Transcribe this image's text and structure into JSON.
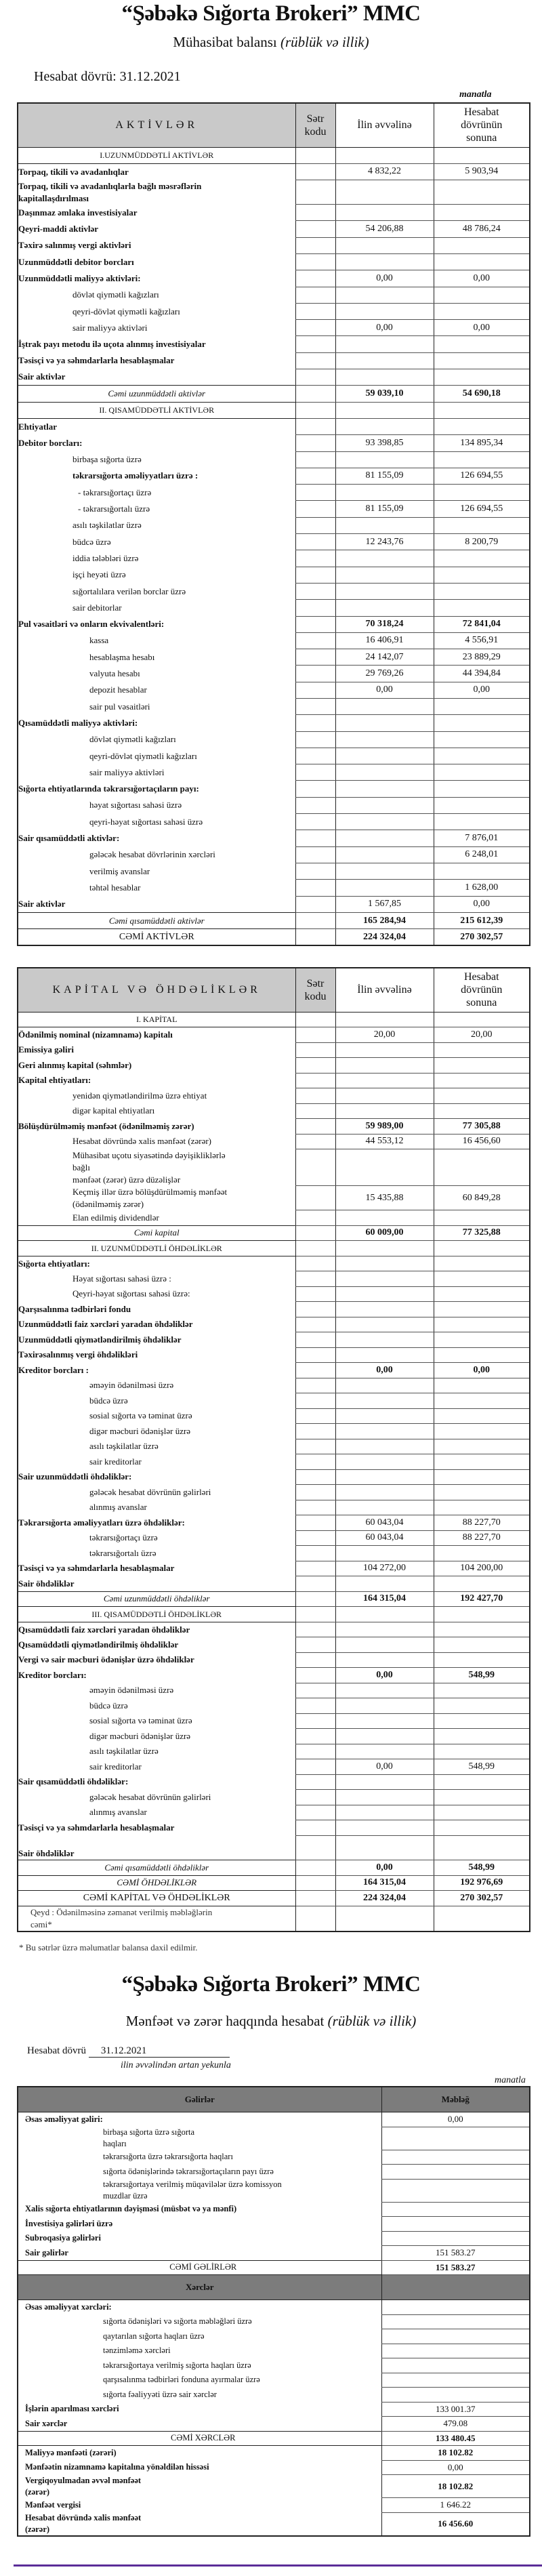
{
  "company": "“Şəbəkə Sığorta Brokeri” MMC",
  "balance": {
    "subtitle": "Mühasibat balansı",
    "subtitle_italic": "(rüblük və illik)",
    "period_label": "Hesabat dövrü: 31.12.2021",
    "currency": "manatla",
    "columns": {
      "code": "Sətr\nkodu",
      "start": "İlin əvvəlinə",
      "end": "Hesabat\ndövrünün\nsonuna"
    }
  },
  "assets": {
    "header": "AKTİVLƏR",
    "rows": [
      {
        "label": "I.UZUNMÜDDƏTLİ AKTİVLƏR",
        "type": "sec",
        "v": [
          "",
          ""
        ]
      },
      {
        "label": "Torpaq, tikili və avadanlıqlar",
        "type": "b",
        "v": [
          "4 832,22",
          "5 903,94"
        ]
      },
      {
        "label": "Torpaq, tikili və avadanlıqlarla bağlı məsrəflərin\nkapitallaşdırılması",
        "type": "b",
        "v": [
          "",
          ""
        ]
      },
      {
        "label": "Daşınmaz əmlaka investisiyalar",
        "type": "b",
        "v": [
          "",
          ""
        ]
      },
      {
        "label": "Qeyri-maddi aktivlər",
        "type": "b",
        "v": [
          "54 206,88",
          "48 786,24"
        ]
      },
      {
        "label": "Təxirə salınmış vergi aktivləri",
        "type": "b",
        "v": [
          "",
          ""
        ]
      },
      {
        "label": "Uzunmüddətli debitor borcları",
        "type": "b",
        "v": [
          "",
          ""
        ]
      },
      {
        "label": "Uzunmüddətli maliyyə aktivləri:",
        "type": "b",
        "v": [
          "0,00",
          "0,00"
        ]
      },
      {
        "label": "dövlət qiymətli kağızları",
        "type": "i1",
        "v": [
          "",
          ""
        ]
      },
      {
        "label": "qeyri-dövlət qiymətli kağızları",
        "type": "i1",
        "v": [
          "",
          ""
        ]
      },
      {
        "label": "sair maliyyə aktivləri",
        "type": "i1",
        "v": [
          "0,00",
          "0,00"
        ]
      },
      {
        "label": "İştrak payı metodu ilə uçota alınmış investisiyalar",
        "type": "b",
        "v": [
          "",
          ""
        ]
      },
      {
        "label": "Təsisçi və ya səhmdarlarla hesablaşmalar",
        "type": "b",
        "v": [
          "",
          ""
        ]
      },
      {
        "label": "Sair aktivlər",
        "type": "b",
        "v": [
          "",
          ""
        ]
      },
      {
        "label": "Cəmi uzunmüddətli aktivlər",
        "type": "tot",
        "v": [
          "59 039,10",
          "54 690,18"
        ]
      },
      {
        "label": "II. QISAMÜDDƏTLİ AKTİVLƏR",
        "type": "sec",
        "v": [
          "",
          ""
        ]
      },
      {
        "label": "Ehtiyatlar",
        "type": "b",
        "v": [
          "",
          ""
        ]
      },
      {
        "label": "Debitor borcları:",
        "type": "b",
        "v": [
          "93 398,85",
          "134 895,34"
        ]
      },
      {
        "label": "birbaşa sığorta üzrə",
        "type": "i1",
        "v": [
          "",
          ""
        ]
      },
      {
        "label": "təkrarsığorta əməliyyatları üzrə :",
        "type": "i1b",
        "v": [
          "81 155,09",
          "126 694,55"
        ]
      },
      {
        "label": "- təkrarsığortaçı üzrə",
        "type": "i1d",
        "v": [
          "",
          ""
        ]
      },
      {
        "label": "- təkrarsığortalı üzrə",
        "type": "i1d",
        "v": [
          "81 155,09",
          "126 694,55"
        ]
      },
      {
        "label": "asılı təşkilatlar üzrə",
        "type": "i1",
        "v": [
          "",
          ""
        ]
      },
      {
        "label": "büdcə üzrə",
        "type": "i1",
        "v": [
          "12 243,76",
          "8 200,79"
        ]
      },
      {
        "label": "iddia tələbləri üzrə",
        "type": "i1",
        "v": [
          "",
          ""
        ]
      },
      {
        "label": "işçi heyəti üzrə",
        "type": "i1",
        "v": [
          "",
          ""
        ]
      },
      {
        "label": "sığortalılara verilən borclar üzrə",
        "type": "i1",
        "v": [
          "",
          ""
        ]
      },
      {
        "label": "sair debitorlar",
        "type": "i1",
        "v": [
          "",
          ""
        ]
      },
      {
        "label": "Pul vəsaitləri  və onların ekvivalentləri:",
        "type": "b bv",
        "v": [
          "70 318,24",
          "72 841,04"
        ]
      },
      {
        "label": "kassa",
        "type": "i2",
        "v": [
          "16 406,91",
          "4 556,91"
        ]
      },
      {
        "label": "hesablaşma hesabı",
        "type": "i2",
        "v": [
          "24 142,07",
          "23 889,29"
        ]
      },
      {
        "label": "valyuta hesabı",
        "type": "i2",
        "v": [
          "29 769,26",
          "44 394,84"
        ]
      },
      {
        "label": "depozit hesablar",
        "type": "i2",
        "v": [
          "0,00",
          "0,00"
        ]
      },
      {
        "label": "sair pul vəsaitləri",
        "type": "i2",
        "v": [
          "",
          ""
        ]
      },
      {
        "label": "Qısamüddətli maliyyə aktivləri:",
        "type": "b",
        "v": [
          "",
          ""
        ]
      },
      {
        "label": "dövlət qiymətli kağızları",
        "type": "i2",
        "v": [
          "",
          ""
        ]
      },
      {
        "label": "qeyri-dövlət qiymətli kağızları",
        "type": "i2",
        "v": [
          "",
          ""
        ]
      },
      {
        "label": "sair maliyyə aktivləri",
        "type": "i2",
        "v": [
          "",
          ""
        ]
      },
      {
        "label": "Sığorta ehtiyatlarında təkrarsığortaçıların payı:",
        "type": "b",
        "v": [
          "",
          ""
        ]
      },
      {
        "label": "həyat sığortası sahəsi üzrə",
        "type": "i2",
        "v": [
          "",
          ""
        ]
      },
      {
        "label": "qeyri-həyat sığortası sahəsi üzrə",
        "type": "i2",
        "v": [
          "",
          ""
        ]
      },
      {
        "label": "Sair qısamüddətli aktivlər:",
        "type": "b",
        "v": [
          "",
          "7 876,01"
        ]
      },
      {
        "label": "gələcək hesabat dövrlərinin xərcləri",
        "type": "i2",
        "v": [
          "",
          "6 248,01"
        ]
      },
      {
        "label": "verilmiş  avanslar",
        "type": "i2",
        "v": [
          "",
          ""
        ]
      },
      {
        "label": "təhtəl hesablar",
        "type": "i2",
        "v": [
          "",
          "1 628,00"
        ]
      },
      {
        "label": "Sair aktivlər",
        "type": "b",
        "v": [
          "1 567,85",
          "0,00"
        ]
      },
      {
        "label": "Cəmi qısamüddətli aktivlər",
        "type": "tot",
        "v": [
          "165 284,94",
          "215 612,39"
        ]
      },
      {
        "label": "CƏMİ AKTİVLƏR",
        "type": "grand",
        "v": [
          "224 324,04",
          "270 302,57"
        ]
      }
    ]
  },
  "liabilities": {
    "header": "KAPİTAL VƏ  ÖHDƏLİKLƏR",
    "rows": [
      {
        "label": "I. KAPİTAL",
        "type": "sec",
        "v": [
          "",
          ""
        ]
      },
      {
        "label": "Ödənilmiş nominal (nizamnamə) kapitalı",
        "type": "b",
        "v": [
          "20,00",
          "20,00"
        ]
      },
      {
        "label": "Emissiya gəliri",
        "type": "b",
        "v": [
          "",
          ""
        ]
      },
      {
        "label": "Geri alınmış kapital (səhmlər)",
        "type": "b",
        "v": [
          "",
          ""
        ]
      },
      {
        "label": "Kapital ehtiyatları:",
        "type": "b",
        "v": [
          "",
          ""
        ]
      },
      {
        "label": "yenidən qiymətləndirilmə üzrə ehtiyat",
        "type": "i1",
        "v": [
          "",
          ""
        ]
      },
      {
        "label": "digər kapital ehtiyatları",
        "type": "i1",
        "v": [
          "",
          ""
        ]
      },
      {
        "label": "Bölüşdürülməmiş mənfəət (ödənilməmiş zərər)",
        "type": "b bv",
        "v": [
          "59 989,00",
          "77 305,88"
        ]
      },
      {
        "label": "Hesabat dövründə xalis mənfəət (zərər)",
        "type": "i1",
        "v": [
          "44 553,12",
          "16 456,60"
        ]
      },
      {
        "label": "Mühasibat uçotu siyasətində dəyişikliklərlə\nbağlı\nmənfəət (zərər) üzrə düzəlişlər",
        "type": "i1",
        "v": [
          "",
          ""
        ]
      },
      {
        "label": "Keçmiş illər üzrə bölüşdürülməmiş mənfəət\n(ödənilməmiş zərər)",
        "type": "i1",
        "v": [
          "15 435,88",
          "60 849,28"
        ]
      },
      {
        "label": "Elan edilmiş dividendlər",
        "type": "i1",
        "v": [
          "",
          ""
        ]
      },
      {
        "label": "Cəmi kapital",
        "type": "tot",
        "v": [
          "60 009,00",
          "77 325,88"
        ]
      },
      {
        "label": "II. UZUNMÜDDƏTLİ ÖHDƏLİKLƏR",
        "type": "sec",
        "v": [
          "",
          ""
        ]
      },
      {
        "label": "Sığorta ehtiyatları:",
        "type": "b",
        "v": [
          "",
          ""
        ]
      },
      {
        "label": "Həyat sığortası sahəsi üzrə :",
        "type": "i1",
        "v": [
          "",
          ""
        ]
      },
      {
        "label": "Qeyri-həyat sığortası sahəsi üzrə:",
        "type": "i1",
        "v": [
          "",
          ""
        ]
      },
      {
        "label": "Qarşısalınma tədbirləri fondu",
        "type": "b",
        "v": [
          "",
          ""
        ]
      },
      {
        "label": "Uzunmüddətli faiz xərcləri yaradan öhdəliklər",
        "type": "b",
        "v": [
          "",
          ""
        ]
      },
      {
        "label": "Uzunmüddətli qiymətləndirilmiş öhdəliklər",
        "type": "b",
        "v": [
          "",
          ""
        ]
      },
      {
        "label": "Təxirəsalınmış vergi öhdəlikləri",
        "type": "b",
        "v": [
          "",
          ""
        ]
      },
      {
        "label": "Kreditor borcları :",
        "type": "b bv",
        "v": [
          "0,00",
          "0,00"
        ]
      },
      {
        "label": "əməyin ödənilməsi üzrə",
        "type": "i2",
        "v": [
          "",
          ""
        ]
      },
      {
        "label": "büdcə üzrə",
        "type": "i2",
        "v": [
          "",
          ""
        ]
      },
      {
        "label": "sosial sığorta və təminat üzrə",
        "type": "i2",
        "v": [
          "",
          ""
        ]
      },
      {
        "label": "digər məcburi ödənişlər üzrə",
        "type": "i2",
        "v": [
          "",
          ""
        ]
      },
      {
        "label": "asılı təşkilatlar üzrə",
        "type": "i2",
        "v": [
          "",
          ""
        ]
      },
      {
        "label": "sair kreditorlar",
        "type": "i2",
        "v": [
          "",
          ""
        ]
      },
      {
        "label": "Sair uzunmüddətli öhdəliklər:",
        "type": "b",
        "v": [
          "",
          ""
        ]
      },
      {
        "label": "gələcək hesabat dövrünün gəlirləri",
        "type": "i2",
        "v": [
          "",
          ""
        ]
      },
      {
        "label": "alınmış avanslar",
        "type": "i2",
        "v": [
          "",
          ""
        ]
      },
      {
        "label": "Təkrarsığorta əməliyyatları üzrə öhdəliklər:",
        "type": "b",
        "v": [
          "60 043,04",
          "88 227,70"
        ]
      },
      {
        "label": "təkrarsığortaçı üzrə",
        "type": "i2",
        "v": [
          "60 043,04",
          "88 227,70"
        ]
      },
      {
        "label": "təkrarsığortalı üzrə",
        "type": "i2",
        "v": [
          "",
          ""
        ]
      },
      {
        "label": "Təsisçi və ya səhmdarlarla hesablaşmalar",
        "type": "b",
        "v": [
          "104 272,00",
          "104 200,00"
        ]
      },
      {
        "label": "Sair öhdəliklər",
        "type": "b",
        "v": [
          "",
          ""
        ]
      },
      {
        "label": "Cəmi uzunmüddətli öhdəliklər",
        "type": "tot",
        "v": [
          "164 315,04",
          "192 427,70"
        ]
      },
      {
        "label": "III. QISAMÜDDƏTLİ ÖHDƏLİKLƏR",
        "type": "sec",
        "v": [
          "",
          ""
        ]
      },
      {
        "label": "Qısamüddətli faiz xərcləri yaradan öhdəliklər",
        "type": "b",
        "v": [
          "",
          ""
        ]
      },
      {
        "label": "Qısamüddətli qiymətləndirilmiş öhdəliklər",
        "type": "b",
        "v": [
          "",
          ""
        ]
      },
      {
        "label": "Vergi və sair məcburi ödənişlər üzrə öhdəliklər",
        "type": "b",
        "v": [
          "",
          ""
        ]
      },
      {
        "label": "Kreditor borcları:",
        "type": "b bv",
        "v": [
          "0,00",
          "548,99"
        ]
      },
      {
        "label": "əməyin ödənilməsi üzrə",
        "type": "i2",
        "v": [
          "",
          ""
        ]
      },
      {
        "label": "büdcə üzrə",
        "type": "i2",
        "v": [
          "",
          ""
        ]
      },
      {
        "label": "sosial sığorta və təminat üzrə",
        "type": "i2",
        "v": [
          "",
          ""
        ]
      },
      {
        "label": "digər məcburi ödənişlər üzrə",
        "type": "i2",
        "v": [
          "",
          ""
        ]
      },
      {
        "label": "asılı təşkilatlar üzrə",
        "type": "i2",
        "v": [
          "",
          ""
        ]
      },
      {
        "label": "sair kreditorlar",
        "type": "i2",
        "v": [
          "0,00",
          "548,99"
        ]
      },
      {
        "label": "Sair qısamüddətli öhdəliklər:",
        "type": "b",
        "v": [
          "",
          ""
        ]
      },
      {
        "label": "gələcək hesabat dövrünün gəlirləri",
        "type": "i2",
        "v": [
          "",
          ""
        ]
      },
      {
        "label": "alınmış avanslar",
        "type": "i2",
        "v": [
          "",
          ""
        ]
      },
      {
        "label": "Təsisçi və ya səhmdarlarla hesablaşmalar",
        "type": "b",
        "v": [
          "",
          ""
        ]
      },
      {
        "label": "\nSair öhdəliklər",
        "type": "b",
        "v": [
          "",
          ""
        ]
      },
      {
        "label": "Cəmi qısamüddətli öhdəliklər",
        "type": "tot",
        "v": [
          "0,00",
          "548,99"
        ]
      },
      {
        "label": "CƏMİ ÖHDƏLİKLƏR",
        "type": "tot",
        "v": [
          "164 315,04",
          "192 976,69"
        ]
      },
      {
        "label": "CƏMİ KAPİTAL VƏ ÖHDƏLİKLƏR",
        "type": "grand",
        "v": [
          "224 324,04",
          "270 302,57"
        ]
      },
      {
        "label": "Qeyd : Ödənilməsinə zəmanət verilmiş məbləğlərin\ncəmi*",
        "type": "note",
        "v": [
          "",
          ""
        ]
      }
    ],
    "footnote": "* Bu sətrlər üzrə məlumatlar balansa daxil edilmir."
  },
  "pnl": {
    "subtitle": "Mənfəət və zərər haqqında hesabat",
    "subtitle_italic": "(rüblük və illik)",
    "period_label": "Hesabat dövrü",
    "period_value": "31.12.2021",
    "period_note": "ilin əvvəlindən artan yekunla",
    "currency": "manatla",
    "col_income": "Gəlirlər",
    "col_amount": "Məbləğ",
    "rows": [
      {
        "label": "Əsas əməliyyat gəliri:",
        "type": "b",
        "v": "0,00"
      },
      {
        "label": "birbaşa sığorta üzrə sığorta\nhaqları",
        "type": "i",
        "v": ""
      },
      {
        "label": "təkrarsığorta üzrə təkrarsığorta haqları",
        "type": "i",
        "v": ""
      },
      {
        "label": "sığorta ödənişlərində təkrarsığortaçıların payı üzrə",
        "type": "i",
        "v": ""
      },
      {
        "label": "təkrarsığortaya verilmiş müqavilələr üzrə komissyon\nmuzdlar üzrə",
        "type": "i",
        "v": ""
      },
      {
        "label": "Xalis sığorta ehtiyatlarının dəyişməsi (müsbət və ya mənfi)",
        "type": "b",
        "v": ""
      },
      {
        "label": "İnvestisiya gəlirləri üzrə",
        "type": "b",
        "v": ""
      },
      {
        "label": "Subroqasiya gəlirləri",
        "type": "b",
        "v": ""
      },
      {
        "label": "Sair gəlirlər",
        "type": "b",
        "v": "151 583.27"
      },
      {
        "label": "CƏMİ  GƏLİRLƏR",
        "type": "grand",
        "v": "151 583.27"
      },
      {
        "label": "Xərclər",
        "type": "xh",
        "v": ""
      },
      {
        "label": "Əsas əməliyyat xərcləri:",
        "type": "b",
        "v": ""
      },
      {
        "label": "sığorta ödənişləri və sığorta məbləğləri üzrə",
        "type": "i",
        "v": ""
      },
      {
        "label": "qaytarılan sığorta haqları üzrə",
        "type": "i",
        "v": ""
      },
      {
        "label": "tənzimləmə xərcləri",
        "type": "i",
        "v": ""
      },
      {
        "label": "təkrarsığortaya verilmiş sığorta haqları üzrə",
        "type": "i",
        "v": ""
      },
      {
        "label": "qarşısalınma tədbirləri fonduna ayırmalar üzrə",
        "type": "i",
        "v": ""
      },
      {
        "label": "sığorta fəaliyyəti üzrə sair xərclər",
        "type": "i",
        "v": ""
      },
      {
        "label": "İşlərin aparılması xərcləri",
        "type": "b",
        "v": "133 001.37"
      },
      {
        "label": "Sair xərclər",
        "type": "b",
        "v": "479.08"
      },
      {
        "label": "CƏMİ  XƏRCLƏR",
        "type": "grand",
        "v": "133 480.45"
      },
      {
        "label": "Maliyyə mənfəəti (zərəri)",
        "type": "b bv",
        "v": "18 102.82"
      },
      {
        "label": "Mənfəətin nizamnamə kapitalına yönəldilən hissəsi",
        "type": "b",
        "v": "0,00"
      },
      {
        "label": "Vergiqoyulmadan əvvəl mənfəət\n(zərər)",
        "type": "b bv",
        "v": "18 102.82"
      },
      {
        "label": "Mənfəət vergisi",
        "type": "b",
        "v": "1 646.22"
      },
      {
        "label": "Hesabat dövründə xalis mənfəət\n(zərər)",
        "type": "b bv",
        "v": "16 456.60"
      }
    ]
  }
}
